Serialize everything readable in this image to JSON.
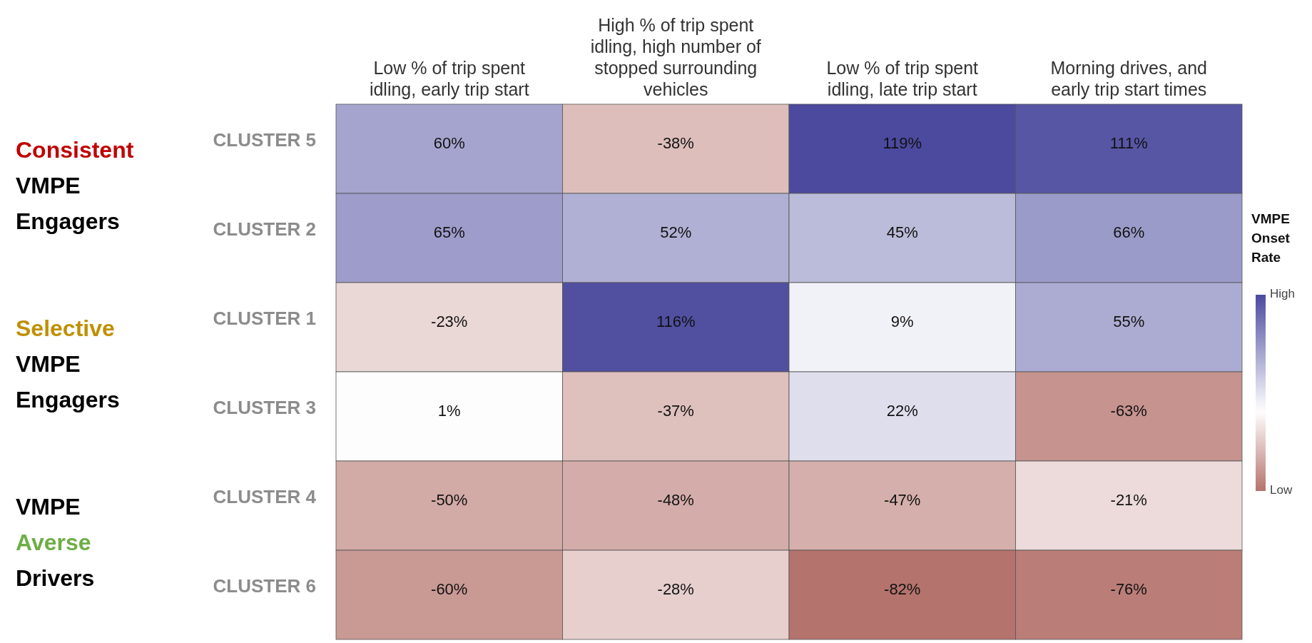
{
  "chart_data": {
    "type": "heatmap",
    "clabel": "VMPE Onset Rate",
    "categories": [
      "Low % of trip spent idling, early trip start",
      "High % of trip spent idling, high number of stopped surrounding vehicles",
      "Low % of trip spent idling, late trip start",
      "Morning drives, and early trip start times"
    ],
    "y_categories": [
      "CLUSTER 5",
      "CLUSTER 2",
      "CLUSTER 1",
      "CLUSTER 3",
      "CLUSTER 4",
      "CLUSTER 6"
    ],
    "cells": [
      [
        60,
        -38,
        119,
        111
      ],
      [
        65,
        52,
        45,
        66
      ],
      [
        -23,
        116,
        9,
        55
      ],
      [
        1,
        -37,
        22,
        -63
      ],
      [
        -50,
        -48,
        -47,
        -21
      ],
      [
        -60,
        -28,
        -82,
        -76
      ]
    ],
    "cell_labels": [
      [
        "60%",
        "-38%",
        "119%",
        "111%"
      ],
      [
        "65%",
        "52%",
        "45%",
        "66%"
      ],
      [
        "-23%",
        "116%",
        "9%",
        "55%"
      ],
      [
        "1%",
        "-37%",
        "22%",
        "-63%"
      ],
      [
        "-50%",
        "-48%",
        "-47%",
        "-21%"
      ],
      [
        "-60%",
        "-28%",
        "-82%",
        "-76%"
      ]
    ],
    "clim": [
      -82,
      119
    ],
    "cticks": [
      {
        "value": 119,
        "label": "High"
      },
      {
        "value": -82,
        "label": "Low"
      }
    ],
    "annotations": [
      "Consistent VMPE Engagers",
      "Selective VMPE Engagers",
      "VMPE Averse Drivers"
    ]
  }
}
